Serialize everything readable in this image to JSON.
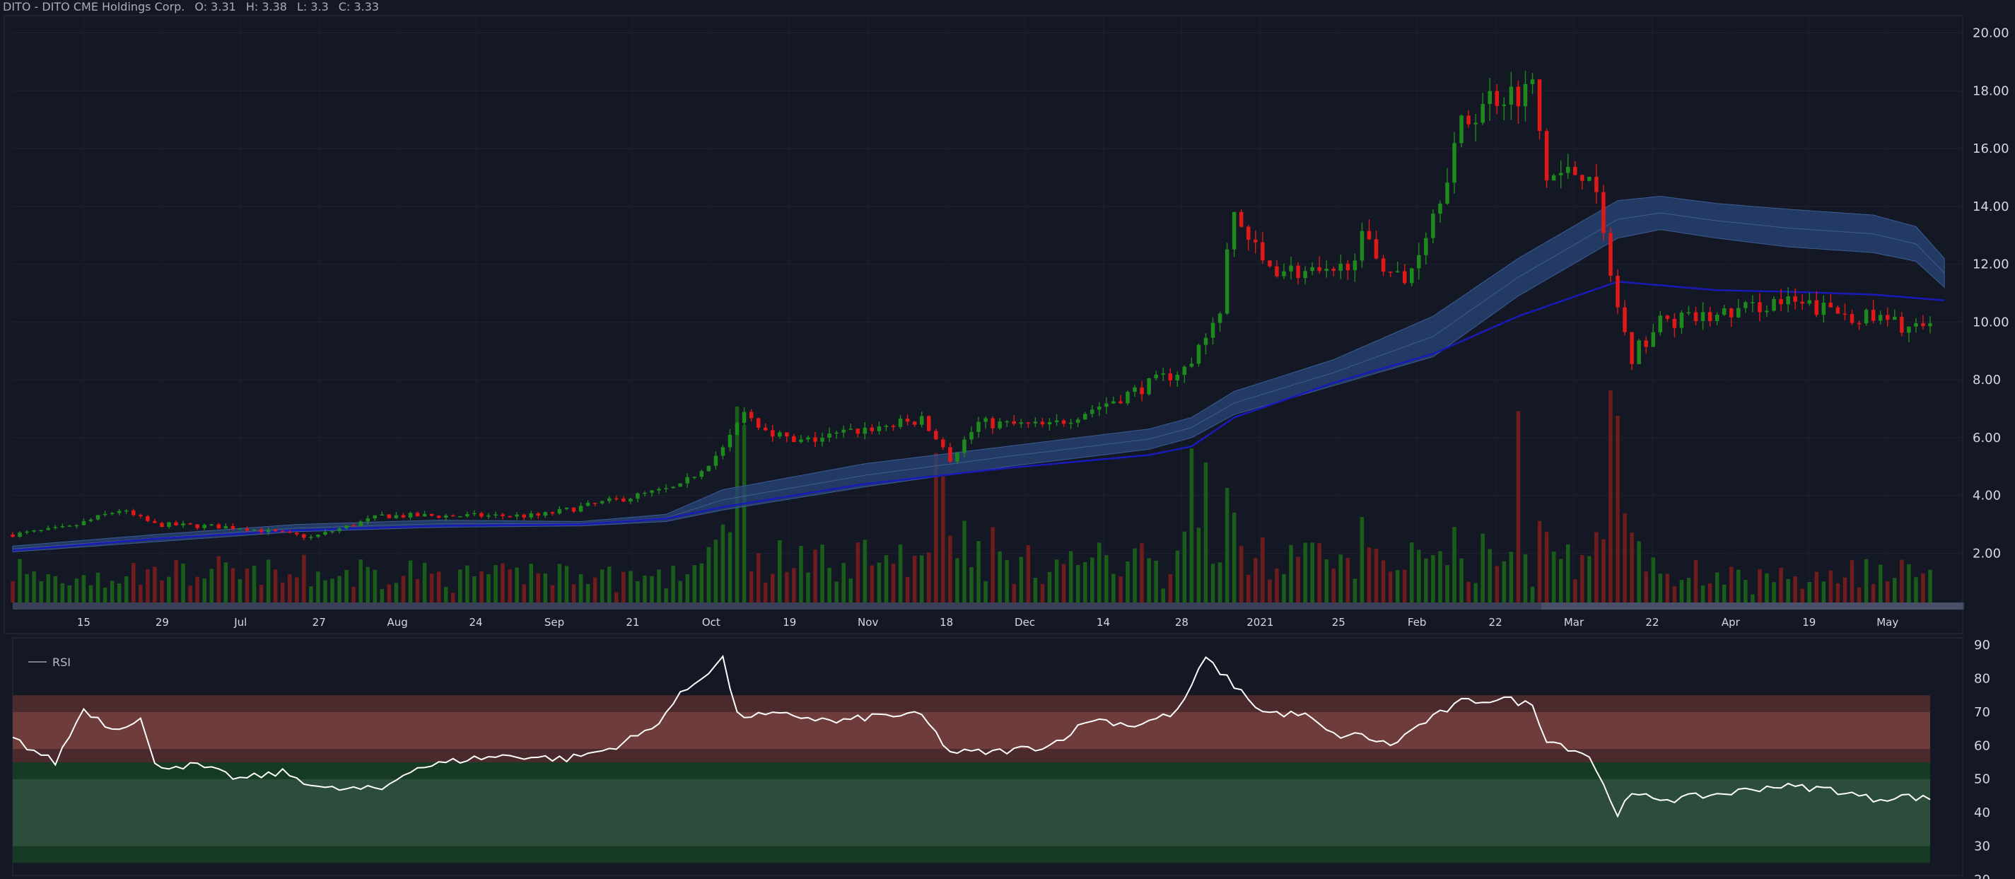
{
  "header": {
    "symbol": "DITO - DITO CME Holdings Corp.",
    "open": "O: 3.31",
    "high": "H: 3.38",
    "low": "L: 3.3",
    "close": "C: 3.33"
  },
  "colors": {
    "background": "#141824",
    "up": "#1e8a1e",
    "down": "#e01818",
    "volume_up": "#1a5c1a",
    "volume_down": "#6e1c1c",
    "ma_line": "#1a1ab8",
    "band": "#27467a",
    "rsi_line": "#ffffff",
    "overbought": "#6e3c3a",
    "oversold": "#2c4c3c"
  },
  "chart_data": [
    {
      "type": "candlestick",
      "title": "",
      "x_ticks": [
        "15",
        "29",
        "Jul",
        "27",
        "Aug",
        "24",
        "Sep",
        "21",
        "Oct",
        "19",
        "Nov",
        "18",
        "Dec",
        "14",
        "28",
        "2021",
        "25",
        "Feb",
        "22",
        "Mar",
        "22",
        "Apr",
        "19",
        "May"
      ],
      "y_ticks": [
        "2.00",
        "4.00",
        "6.00",
        "8.00",
        "10.00",
        "12.00",
        "14.00",
        "16.00",
        "18.00",
        "20.00"
      ],
      "ylim": [
        0.3,
        20.6
      ],
      "price_anchors": [
        [
          0,
          2.65
        ],
        [
          8,
          2.9
        ],
        [
          15,
          3.5
        ],
        [
          20,
          3.0
        ],
        [
          32,
          2.9
        ],
        [
          42,
          2.55
        ],
        [
          52,
          3.3
        ],
        [
          64,
          3.3
        ],
        [
          74,
          3.3
        ],
        [
          84,
          3.8
        ],
        [
          94,
          4.3
        ],
        [
          100,
          5.6
        ],
        [
          103,
          6.8
        ],
        [
          110,
          5.8
        ],
        [
          120,
          6.3
        ],
        [
          128,
          6.6
        ],
        [
          132,
          5.3
        ],
        [
          136,
          6.5
        ],
        [
          146,
          6.4
        ],
        [
          156,
          7.4
        ],
        [
          166,
          8.5
        ],
        [
          170,
          10.5
        ],
        [
          172,
          13.8
        ],
        [
          176,
          12.0
        ],
        [
          186,
          11.5
        ],
        [
          190,
          12.8
        ],
        [
          196,
          11.3
        ],
        [
          200,
          13.8
        ],
        [
          204,
          16.7
        ],
        [
          208,
          17.8
        ],
        [
          214,
          18.1
        ],
        [
          216,
          15.0
        ],
        [
          222,
          15.3
        ],
        [
          226,
          10.5
        ],
        [
          228,
          8.8
        ],
        [
          232,
          10.0
        ],
        [
          240,
          10.2
        ],
        [
          248,
          10.7
        ],
        [
          256,
          10.4
        ],
        [
          264,
          10.0
        ],
        [
          270,
          9.7
        ]
      ],
      "n_candles": 271,
      "moving_average": [
        [
          0,
          2.1
        ],
        [
          20,
          2.5
        ],
        [
          40,
          2.8
        ],
        [
          60,
          2.95
        ],
        [
          80,
          3.0
        ],
        [
          92,
          3.2
        ],
        [
          100,
          3.6
        ],
        [
          120,
          4.4
        ],
        [
          140,
          4.95
        ],
        [
          160,
          5.4
        ],
        [
          166,
          5.7
        ],
        [
          172,
          6.7
        ],
        [
          186,
          7.9
        ],
        [
          200,
          8.9
        ],
        [
          212,
          10.2
        ],
        [
          226,
          11.4
        ],
        [
          240,
          11.1
        ],
        [
          250,
          11.05
        ],
        [
          262,
          10.95
        ],
        [
          272,
          10.75
        ]
      ],
      "band_upper": [
        [
          0,
          2.25
        ],
        [
          20,
          2.65
        ],
        [
          40,
          3.0
        ],
        [
          60,
          3.15
        ],
        [
          80,
          3.1
        ],
        [
          92,
          3.35
        ],
        [
          100,
          4.2
        ],
        [
          120,
          5.1
        ],
        [
          140,
          5.7
        ],
        [
          160,
          6.3
        ],
        [
          166,
          6.7
        ],
        [
          172,
          7.6
        ],
        [
          186,
          8.7
        ],
        [
          200,
          10.2
        ],
        [
          212,
          12.2
        ],
        [
          226,
          14.2
        ],
        [
          232,
          14.35
        ],
        [
          240,
          14.1
        ],
        [
          250,
          13.9
        ],
        [
          262,
          13.7
        ],
        [
          268,
          13.3
        ],
        [
          272,
          12.2
        ]
      ],
      "band_lower": [
        [
          0,
          2.05
        ],
        [
          20,
          2.4
        ],
        [
          40,
          2.75
        ],
        [
          60,
          2.9
        ],
        [
          80,
          2.95
        ],
        [
          92,
          3.1
        ],
        [
          100,
          3.5
        ],
        [
          120,
          4.3
        ],
        [
          140,
          5.0
        ],
        [
          160,
          5.6
        ],
        [
          166,
          6.0
        ],
        [
          172,
          6.8
        ],
        [
          186,
          7.8
        ],
        [
          200,
          8.8
        ],
        [
          212,
          10.9
        ],
        [
          226,
          12.9
        ],
        [
          232,
          13.2
        ],
        [
          240,
          12.9
        ],
        [
          250,
          12.6
        ],
        [
          262,
          12.4
        ],
        [
          268,
          12.1
        ],
        [
          272,
          11.2
        ]
      ],
      "volume_spikes": [
        [
          102,
          4.2
        ],
        [
          103,
          3.8
        ],
        [
          130,
          3.2
        ],
        [
          131,
          2.7
        ],
        [
          166,
          3.3
        ],
        [
          168,
          3.0
        ],
        [
          212,
          4.1
        ],
        [
          225,
          5.1
        ],
        [
          226,
          4.0
        ],
        [
          228,
          1.5
        ]
      ]
    },
    {
      "type": "line",
      "title": "",
      "legend": [
        "RSI"
      ],
      "y_ticks": [
        "20",
        "30",
        "40",
        "50",
        "60",
        "70",
        "80",
        "90"
      ],
      "ylim": [
        20,
        90
      ],
      "overbought_zone": [
        55,
        75
      ],
      "overbought_inner": [
        59,
        70
      ],
      "oversold_zone": [
        25,
        55
      ],
      "oversold_inner": [
        30,
        50
      ],
      "rsi": [
        [
          0,
          62
        ],
        [
          6,
          55
        ],
        [
          10,
          71
        ],
        [
          14,
          65
        ],
        [
          18,
          68
        ],
        [
          20,
          54
        ],
        [
          26,
          54
        ],
        [
          32,
          50
        ],
        [
          38,
          52
        ],
        [
          44,
          47
        ],
        [
          52,
          47
        ],
        [
          56,
          53
        ],
        [
          64,
          56
        ],
        [
          70,
          57
        ],
        [
          78,
          56
        ],
        [
          84,
          59
        ],
        [
          90,
          65
        ],
        [
          94,
          75
        ],
        [
          100,
          86
        ],
        [
          102,
          69
        ],
        [
          110,
          69
        ],
        [
          116,
          67
        ],
        [
          122,
          69
        ],
        [
          128,
          69
        ],
        [
          132,
          58
        ],
        [
          138,
          58
        ],
        [
          146,
          60
        ],
        [
          152,
          68
        ],
        [
          158,
          66
        ],
        [
          164,
          70
        ],
        [
          168,
          86
        ],
        [
          172,
          78
        ],
        [
          176,
          70
        ],
        [
          182,
          69
        ],
        [
          186,
          63
        ],
        [
          190,
          63
        ],
        [
          194,
          60
        ],
        [
          198,
          66
        ],
        [
          204,
          73
        ],
        [
          210,
          74
        ],
        [
          214,
          72
        ],
        [
          216,
          62
        ],
        [
          222,
          57
        ],
        [
          224,
          48
        ],
        [
          226,
          40
        ],
        [
          228,
          45
        ],
        [
          234,
          44
        ],
        [
          242,
          46
        ],
        [
          248,
          48
        ],
        [
          256,
          47
        ],
        [
          262,
          44
        ],
        [
          266,
          45
        ],
        [
          270,
          44
        ]
      ]
    }
  ]
}
